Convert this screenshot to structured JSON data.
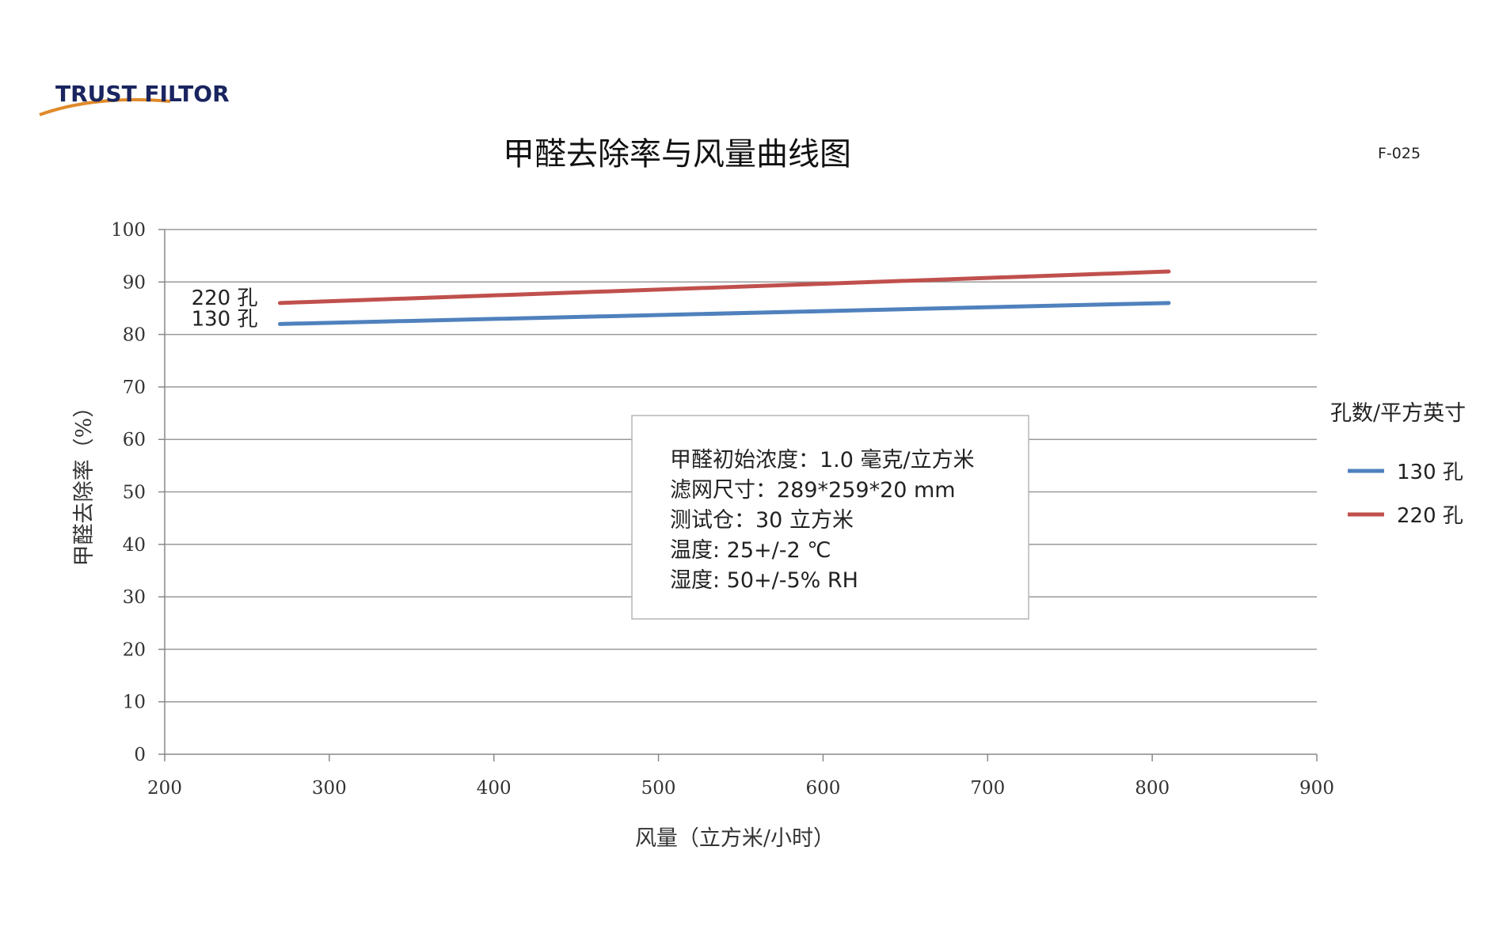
{
  "logo": {
    "text": "TRUST FILTOR"
  },
  "code": "F-025",
  "chart_data": {
    "type": "line",
    "title": "甲醛去除率与风量曲线图",
    "xlabel": "风量（立方米/小时）",
    "ylabel": "甲醛去除率（%）",
    "xlim": [
      200,
      900
    ],
    "ylim": [
      0,
      100
    ],
    "xticks": [
      200,
      300,
      400,
      500,
      600,
      700,
      800,
      900
    ],
    "yticks": [
      0,
      10,
      20,
      30,
      40,
      50,
      60,
      70,
      80,
      90,
      100
    ],
    "grid": true,
    "legend": {
      "title": "孔数/平方英寸",
      "placement": "right"
    },
    "series": [
      {
        "name": "130 孔",
        "label": "130 孔",
        "color": "#4f81bd",
        "x": [
          270,
          810
        ],
        "y": [
          82,
          86
        ]
      },
      {
        "name": "220 孔",
        "label": "220 孔",
        "color": "#c0504d",
        "x": [
          270,
          810
        ],
        "y": [
          86,
          92
        ]
      }
    ],
    "annotation_lines": [
      "甲醛初始浓度：1.0 毫克/立方米",
      "滤网尺寸：289*259*20 mm",
      "测试仓：30 立方米",
      "温度: 25+/-2 ℃",
      "湿度: 50+/-5% RH"
    ]
  }
}
